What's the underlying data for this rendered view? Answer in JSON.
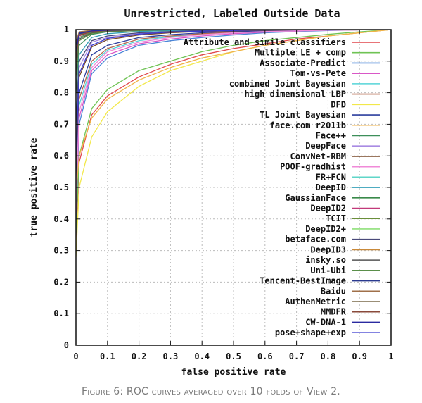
{
  "chart_data": {
    "type": "line",
    "title": "Unrestricted, Labeled Outside Data",
    "xlabel": "false positive rate",
    "ylabel": "true positive rate",
    "xlim": [
      0,
      1
    ],
    "ylim": [
      0,
      1
    ],
    "xticks": [
      "0",
      "0.1",
      "0.2",
      "0.3",
      "0.4",
      "0.5",
      "0.6",
      "0.7",
      "0.8",
      "0.9",
      "1"
    ],
    "yticks": [
      "0",
      "0.1",
      "0.2",
      "0.3",
      "0.4",
      "0.5",
      "0.6",
      "0.7",
      "0.8",
      "0.9",
      "1"
    ],
    "grid": true,
    "legend_position": "right",
    "series": [
      {
        "name": "Attribute and simile classifiers",
        "color": "#e0474c",
        "x": [
          0,
          0.01,
          0.05,
          0.1,
          0.2,
          0.3,
          0.4,
          0.5,
          0.6,
          0.7,
          0.8,
          0.9,
          1
        ],
        "y": [
          0.33,
          0.58,
          0.73,
          0.79,
          0.85,
          0.89,
          0.92,
          0.94,
          0.955,
          0.97,
          0.98,
          0.99,
          1
        ]
      },
      {
        "name": "Multiple LE + comp",
        "color": "#6fc354",
        "x": [
          0,
          0.01,
          0.05,
          0.1,
          0.2,
          0.3,
          0.4,
          0.5,
          0.6,
          0.7,
          0.8,
          0.9,
          1
        ],
        "y": [
          0.35,
          0.6,
          0.75,
          0.81,
          0.87,
          0.9,
          0.93,
          0.95,
          0.965,
          0.975,
          0.985,
          0.993,
          1
        ]
      },
      {
        "name": "Associate-Predict",
        "color": "#4a86d8",
        "x": [
          0,
          0.01,
          0.05,
          0.1,
          0.2,
          0.3,
          0.4,
          0.5,
          0.6,
          0.7,
          0.8,
          0.9,
          1
        ],
        "y": [
          0.4,
          0.7,
          0.86,
          0.91,
          0.95,
          0.965,
          0.975,
          0.983,
          0.99,
          0.994,
          0.997,
          0.999,
          1
        ]
      },
      {
        "name": "Tom-vs-Pete",
        "color": "#d957c7",
        "x": [
          0,
          0.01,
          0.05,
          0.1,
          0.2,
          0.3,
          0.4,
          0.5,
          0.6,
          0.7,
          0.8,
          0.9,
          1
        ],
        "y": [
          0.42,
          0.72,
          0.87,
          0.92,
          0.955,
          0.97,
          0.98,
          0.987,
          0.992,
          0.995,
          0.998,
          0.999,
          1
        ]
      },
      {
        "name": "combined Joint Bayesian",
        "color": "#56d4d8",
        "x": [
          0,
          0.01,
          0.05,
          0.1,
          0.2,
          0.3,
          0.4,
          0.5,
          0.6,
          0.7,
          0.8,
          0.9,
          1
        ],
        "y": [
          0.45,
          0.76,
          0.89,
          0.935,
          0.965,
          0.978,
          0.985,
          0.99,
          0.994,
          0.996,
          0.998,
          0.999,
          1
        ]
      },
      {
        "name": "high dimensional LBP",
        "color": "#b5664a",
        "x": [
          0,
          0.01,
          0.05,
          0.1,
          0.2,
          0.3,
          0.4,
          0.5,
          0.6,
          0.7,
          0.8,
          0.9,
          1
        ],
        "y": [
          0.47,
          0.78,
          0.9,
          0.94,
          0.97,
          0.98,
          0.987,
          0.992,
          0.995,
          0.997,
          0.998,
          0.999,
          1
        ]
      },
      {
        "name": "DFD",
        "color": "#f2e84a",
        "x": [
          0,
          0.01,
          0.05,
          0.1,
          0.2,
          0.3,
          0.4,
          0.5,
          0.6,
          0.7,
          0.8,
          0.9,
          1
        ],
        "y": [
          0.28,
          0.5,
          0.66,
          0.74,
          0.82,
          0.87,
          0.9,
          0.93,
          0.95,
          0.965,
          0.98,
          0.99,
          1
        ]
      },
      {
        "name": "TL Joint Bayesian",
        "color": "#2d3f9e",
        "x": [
          0,
          0.01,
          0.05,
          0.1,
          0.2,
          0.3,
          0.4,
          0.5,
          0.6,
          0.7,
          0.8,
          0.9,
          1
        ],
        "y": [
          0.5,
          0.8,
          0.92,
          0.95,
          0.975,
          0.984,
          0.99,
          0.994,
          0.996,
          0.998,
          0.999,
          0.999,
          1
        ]
      },
      {
        "name": "face.com r2011b",
        "color": "#f0b34a",
        "x": [
          0,
          0.01,
          0.05,
          0.1,
          0.2,
          0.3,
          0.4,
          0.5,
          0.6,
          0.7,
          0.8,
          0.9,
          1
        ],
        "y": [
          0.48,
          0.6,
          0.72,
          0.78,
          0.84,
          0.88,
          0.91,
          0.93,
          0.95,
          0.965,
          0.98,
          0.99,
          1
        ]
      },
      {
        "name": "Face++",
        "color": "#3d8f5a",
        "x": [
          0,
          0.01,
          0.05,
          0.1,
          0.2,
          0.3,
          0.4,
          0.5,
          0.6,
          0.7,
          0.8,
          0.9,
          1
        ],
        "y": [
          0.8,
          0.95,
          0.985,
          0.993,
          0.997,
          0.998,
          0.999,
          0.999,
          1,
          1,
          1,
          1,
          1
        ]
      },
      {
        "name": "DeepFace",
        "color": "#a98be3",
        "x": [
          0,
          0.01,
          0.05,
          0.1,
          0.2,
          0.3,
          0.4,
          0.5,
          0.6,
          0.7,
          0.8,
          0.9,
          1
        ],
        "y": [
          0.62,
          0.88,
          0.96,
          0.975,
          0.988,
          0.993,
          0.996,
          0.998,
          0.999,
          0.999,
          1,
          1,
          1
        ]
      },
      {
        "name": "ConvNet-RBM",
        "color": "#7a4a2a",
        "x": [
          0,
          0.01,
          0.05,
          0.1,
          0.2,
          0.3,
          0.4,
          0.5,
          0.6,
          0.7,
          0.8,
          0.9,
          1
        ],
        "y": [
          0.58,
          0.85,
          0.945,
          0.968,
          0.983,
          0.99,
          0.994,
          0.996,
          0.998,
          0.999,
          1,
          1,
          1
        ]
      },
      {
        "name": "POOF-gradhist",
        "color": "#f08ad8",
        "x": [
          0,
          0.01,
          0.05,
          0.1,
          0.2,
          0.3,
          0.4,
          0.5,
          0.6,
          0.7,
          0.8,
          0.9,
          1
        ],
        "y": [
          0.46,
          0.74,
          0.88,
          0.93,
          0.96,
          0.975,
          0.984,
          0.99,
          0.994,
          0.996,
          0.998,
          0.999,
          1
        ]
      },
      {
        "name": "FR+FCN",
        "color": "#5fd6c8",
        "x": [
          0,
          0.01,
          0.05,
          0.1,
          0.2,
          0.3,
          0.4,
          0.5,
          0.6,
          0.7,
          0.8,
          0.9,
          1
        ],
        "y": [
          0.86,
          0.97,
          0.99,
          0.995,
          0.998,
          0.999,
          0.999,
          1,
          1,
          1,
          1,
          1,
          1
        ]
      },
      {
        "name": "DeepID",
        "color": "#35a0b8",
        "x": [
          0,
          0.01,
          0.05,
          0.1,
          0.2,
          0.3,
          0.4,
          0.5,
          0.6,
          0.7,
          0.8,
          0.9,
          1
        ],
        "y": [
          0.7,
          0.92,
          0.975,
          0.987,
          0.994,
          0.997,
          0.998,
          0.999,
          1,
          1,
          1,
          1,
          1
        ]
      },
      {
        "name": "GaussianFace",
        "color": "#3a8a4a",
        "x": [
          0,
          0.01,
          0.05,
          0.1,
          0.2,
          0.3,
          0.4,
          0.5,
          0.6,
          0.7,
          0.8,
          0.9,
          1
        ],
        "y": [
          0.88,
          0.975,
          0.992,
          0.996,
          0.998,
          0.999,
          1,
          1,
          1,
          1,
          1,
          1,
          1
        ]
      },
      {
        "name": "DeepID2",
        "color": "#c23a7a",
        "x": [
          0,
          0.01,
          0.05,
          0.1,
          0.2,
          0.3,
          0.4,
          0.5,
          0.6,
          0.7,
          0.8,
          0.9,
          1
        ],
        "y": [
          0.9,
          0.98,
          0.994,
          0.997,
          0.999,
          0.999,
          1,
          1,
          1,
          1,
          1,
          1,
          1
        ]
      },
      {
        "name": "TCIT",
        "color": "#6a8f3a",
        "x": [
          0,
          0.01,
          0.05,
          0.1,
          0.2,
          0.3,
          0.4,
          0.5,
          0.6,
          0.7,
          0.8,
          0.9,
          1
        ],
        "y": [
          0.85,
          0.965,
          0.988,
          0.994,
          0.997,
          0.999,
          0.999,
          1,
          1,
          1,
          1,
          1,
          1
        ]
      },
      {
        "name": "DeepID2+",
        "color": "#8fe07a",
        "x": [
          0,
          0.01,
          0.05,
          0.1,
          0.2,
          0.3,
          0.4,
          0.5,
          0.6,
          0.7,
          0.8,
          0.9,
          1
        ],
        "y": [
          0.93,
          0.985,
          0.996,
          0.998,
          0.999,
          1,
          1,
          1,
          1,
          1,
          1,
          1,
          1
        ]
      },
      {
        "name": "betaface.com",
        "color": "#4a4a7a",
        "x": [
          0,
          0.01,
          0.05,
          0.1,
          0.2,
          0.3,
          0.4,
          0.5,
          0.6,
          0.7,
          0.8,
          0.9,
          1
        ],
        "y": [
          0.7,
          0.9,
          0.965,
          0.98,
          0.99,
          0.994,
          0.997,
          0.998,
          0.999,
          1,
          1,
          1,
          1
        ]
      },
      {
        "name": "DeepID3",
        "color": "#c98a3a",
        "x": [
          0,
          0.01,
          0.05,
          0.1,
          0.2,
          0.3,
          0.4,
          0.5,
          0.6,
          0.7,
          0.8,
          0.9,
          1
        ],
        "y": [
          0.94,
          0.99,
          0.997,
          0.999,
          1,
          1,
          1,
          1,
          1,
          1,
          1,
          1,
          1
        ]
      },
      {
        "name": "insky.so",
        "color": "#555555",
        "x": [
          0,
          0.01,
          0.05,
          0.1,
          0.2,
          0.3,
          0.4,
          0.5,
          0.6,
          0.7,
          0.8,
          0.9,
          1
        ],
        "y": [
          0.87,
          0.97,
          0.99,
          0.995,
          0.998,
          0.999,
          1,
          1,
          1,
          1,
          1,
          1,
          1
        ]
      },
      {
        "name": "Uni-Ubi",
        "color": "#5a8f4a",
        "x": [
          0,
          0.01,
          0.05,
          0.1,
          0.2,
          0.3,
          0.4,
          0.5,
          0.6,
          0.7,
          0.8,
          0.9,
          1
        ],
        "y": [
          0.89,
          0.975,
          0.992,
          0.996,
          0.998,
          0.999,
          1,
          1,
          1,
          1,
          1,
          1,
          1
        ]
      },
      {
        "name": "Tencent-BestImage",
        "color": "#2a3a8f",
        "x": [
          0,
          0.01,
          0.05,
          0.1,
          0.2,
          0.3,
          0.4,
          0.5,
          0.6,
          0.7,
          0.8,
          0.9,
          1
        ],
        "y": [
          0.95,
          0.99,
          0.998,
          0.999,
          1,
          1,
          1,
          1,
          1,
          1,
          1,
          1,
          1
        ]
      },
      {
        "name": "Baidu",
        "color": "#a0704a",
        "x": [
          0,
          0.01,
          0.05,
          0.1,
          0.2,
          0.3,
          0.4,
          0.5,
          0.6,
          0.7,
          0.8,
          0.9,
          1
        ],
        "y": [
          0.96,
          0.993,
          0.998,
          0.999,
          1,
          1,
          1,
          1,
          1,
          1,
          1,
          1,
          1
        ]
      },
      {
        "name": "AuthenMetric",
        "color": "#7a6a4a",
        "x": [
          0,
          0.01,
          0.05,
          0.1,
          0.2,
          0.3,
          0.4,
          0.5,
          0.6,
          0.7,
          0.8,
          0.9,
          1
        ],
        "y": [
          0.92,
          0.985,
          0.995,
          0.998,
          0.999,
          1,
          1,
          1,
          1,
          1,
          1,
          1,
          1
        ]
      },
      {
        "name": "MMDFR",
        "color": "#8a4a3a",
        "x": [
          0,
          0.01,
          0.05,
          0.1,
          0.2,
          0.3,
          0.4,
          0.5,
          0.6,
          0.7,
          0.8,
          0.9,
          1
        ],
        "y": [
          0.91,
          0.982,
          0.994,
          0.997,
          0.999,
          1,
          1,
          1,
          1,
          1,
          1,
          1,
          1
        ]
      },
      {
        "name": "CW-DNA-1",
        "color": "#2a2aa0",
        "x": [
          0,
          0.01,
          0.05,
          0.1,
          0.2,
          0.3,
          0.4,
          0.5,
          0.6,
          0.7,
          0.8,
          0.9,
          1
        ],
        "y": [
          0.93,
          0.987,
          0.996,
          0.998,
          0.999,
          1,
          1,
          1,
          1,
          1,
          1,
          1,
          1
        ]
      },
      {
        "name": "pose+shape+exp",
        "color": "#3a3acf",
        "x": [
          0,
          0.01,
          0.05,
          0.1,
          0.2,
          0.3,
          0.4,
          0.5,
          0.6,
          0.7,
          0.8,
          0.9,
          1
        ],
        "y": [
          0.6,
          0.86,
          0.95,
          0.972,
          0.986,
          0.992,
          0.995,
          0.997,
          0.999,
          1,
          1,
          1,
          1
        ]
      }
    ]
  },
  "caption": "Figure 6: ROC curves averaged over 10 folds of View 2."
}
